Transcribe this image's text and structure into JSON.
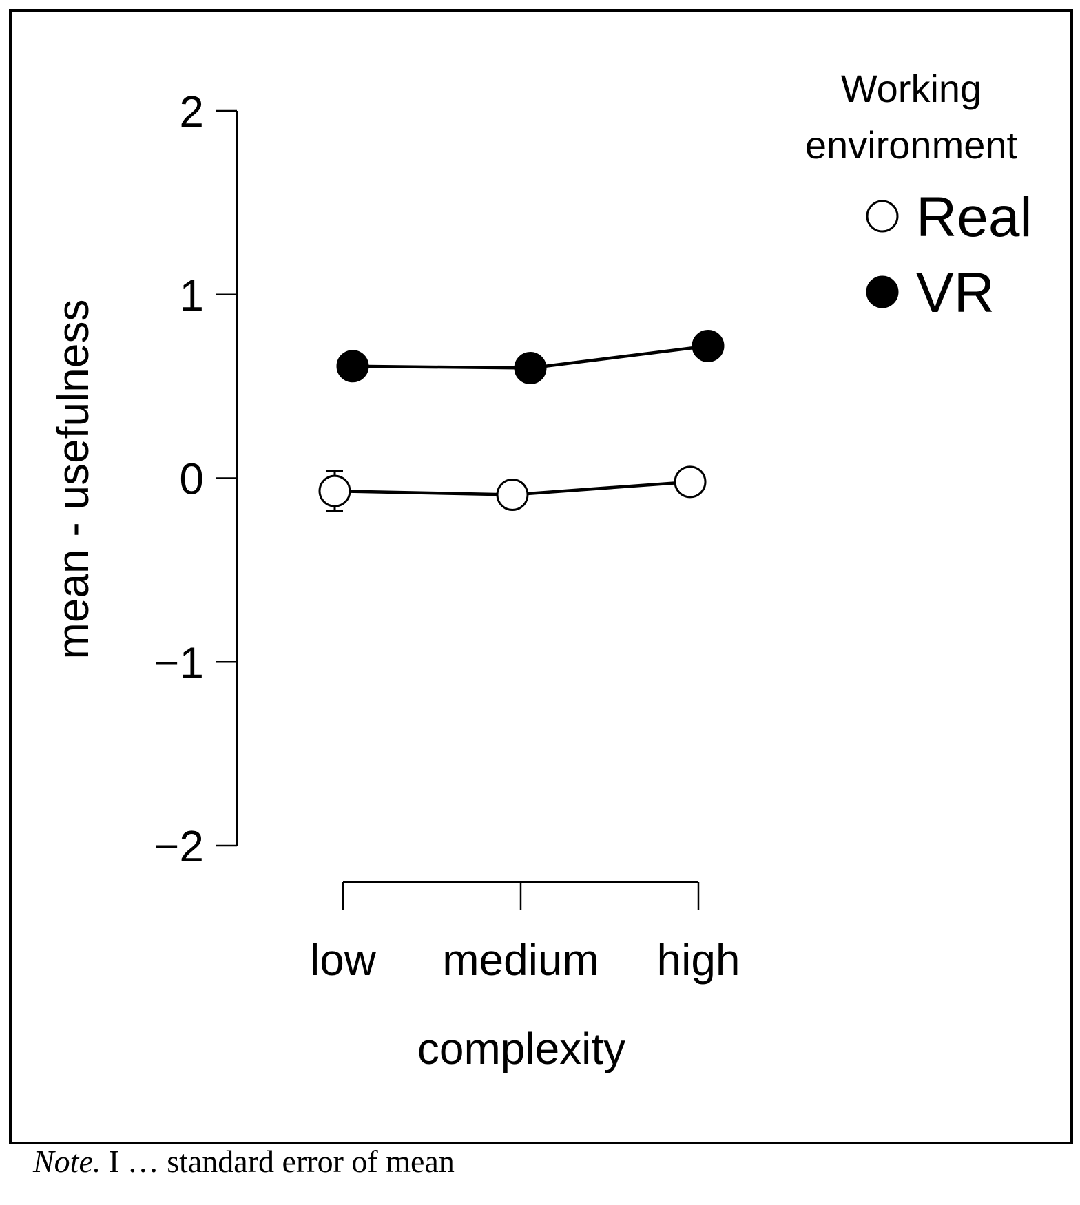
{
  "chart_data": {
    "type": "line",
    "xlabel": "complexity",
    "ylabel": "mean - usefulness",
    "categories": [
      "low",
      "medium",
      "high"
    ],
    "ylim": [
      -2,
      2
    ],
    "yticks": [
      2,
      1,
      0,
      -1,
      -2
    ],
    "ytick_labels": [
      "2",
      "1",
      "0",
      "−1",
      "−2"
    ],
    "grid": false,
    "legend": {
      "title_line1": "Working",
      "title_line2": "environment",
      "placement": "top-right"
    },
    "series": [
      {
        "name": "Real",
        "marker": "open-circle",
        "values": [
          -0.07,
          -0.09,
          -0.02
        ],
        "error": [
          0.11,
          0.0,
          0.0
        ]
      },
      {
        "name": "VR",
        "marker": "filled-circle",
        "values": [
          0.61,
          0.6,
          0.72
        ],
        "error": [
          0.0,
          0.0,
          0.0
        ]
      }
    ]
  },
  "note": {
    "label": "Note.",
    "text": " I … standard error of mean"
  }
}
